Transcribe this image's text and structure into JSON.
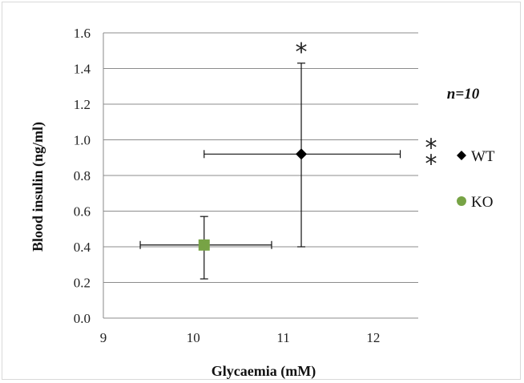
{
  "chart_data": {
    "type": "scatter",
    "title": "",
    "xlabel": "Glycaemia  (mM)",
    "ylabel": "Blood  insulin (ng/ml)",
    "xlim": [
      9,
      12.5
    ],
    "ylim": [
      0,
      1.6
    ],
    "xticks": [
      9,
      10,
      11,
      12
    ],
    "yticks": [
      0.0,
      0.2,
      0.4,
      0.6,
      0.8,
      1.0,
      1.2,
      1.4,
      1.6
    ],
    "xtick_labels": [
      "9",
      "10",
      "11",
      "12"
    ],
    "ytick_labels": [
      "0.0",
      "0.2",
      "0.4",
      "0.6",
      "0.8",
      "1.0",
      "1.2",
      "1.4",
      "1.6"
    ],
    "grid": "horizontal",
    "legend_position": "right",
    "series": [
      {
        "name": "WT",
        "color": "#000000",
        "marker": "diamond",
        "x": 11.2,
        "y": 0.92,
        "x_error": [
          10.12,
          12.3
        ],
        "y_error": [
          0.4,
          1.43
        ]
      },
      {
        "name": "KO",
        "color": "#77a345",
        "marker": "square",
        "x": 10.12,
        "y": 0.41,
        "x_error": [
          9.41,
          10.87
        ],
        "y_error": [
          0.22,
          0.57
        ]
      }
    ],
    "annotations": {
      "sample_size": "n=10",
      "y_significance": "*",
      "x_significance": "**"
    }
  }
}
